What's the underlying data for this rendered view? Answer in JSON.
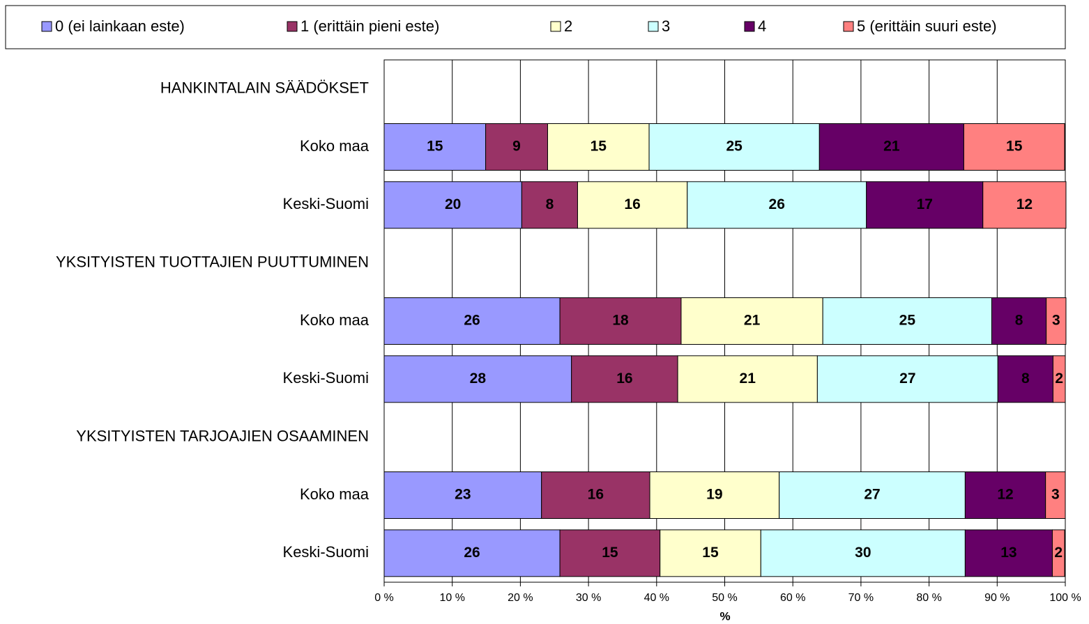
{
  "chart_data": {
    "type": "stacked-bar-horizontal",
    "categories": [
      "HANKINTALAIN SÄÄDÖKSET",
      "Koko maa",
      "Keski-Suomi",
      "YKSITYISTEN TUOTTAJIEN PUUTTUMINEN",
      "Koko maa",
      "Keski-Suomi",
      "YKSITYISTEN TARJOAJIEN OSAAMINEN",
      "Koko maa",
      "Keski-Suomi"
    ],
    "series": [
      {
        "name": "0 (ei lainkaan este)",
        "color": "#9999ff",
        "values": [
          null,
          14.9,
          20.2,
          null,
          25.8,
          27.5,
          null,
          23.1,
          25.8
        ],
        "value_labels": [
          null,
          "15",
          "20",
          null,
          "26",
          "28",
          null,
          "23",
          "26"
        ]
      },
      {
        "name": "1 (erittäin pieni este)",
        "color": "#993366",
        "values": [
          null,
          9.1,
          8.2,
          null,
          17.8,
          15.6,
          null,
          15.9,
          14.7
        ],
        "value_labels": [
          null,
          "9",
          "8",
          null,
          "18",
          "16",
          null,
          "16",
          "15"
        ]
      },
      {
        "name": "2",
        "color": "#ffffcc",
        "values": [
          null,
          14.9,
          16.1,
          null,
          20.8,
          20.5,
          null,
          19.0,
          14.8
        ],
        "value_labels": [
          null,
          "15",
          "16",
          null,
          "21",
          "21",
          null,
          "19",
          "15"
        ]
      },
      {
        "name": "3",
        "color": "#ccffff",
        "values": [
          null,
          25.0,
          26.3,
          null,
          24.8,
          26.5,
          null,
          27.3,
          30.0
        ],
        "value_labels": [
          null,
          "25",
          "26",
          null,
          "25",
          "27",
          null,
          "27",
          "30"
        ]
      },
      {
        "name": "4",
        "color": "#660066",
        "values": [
          null,
          21.2,
          17.1,
          null,
          8.0,
          8.1,
          null,
          11.8,
          12.8
        ],
        "value_labels": [
          null,
          "21",
          "17",
          null,
          "8",
          "8",
          null,
          "12",
          "13"
        ]
      },
      {
        "name": "5 (erittäin suuri este)",
        "color": "#ff8080",
        "values": [
          null,
          14.8,
          12.2,
          null,
          2.9,
          1.8,
          null,
          2.9,
          1.8
        ],
        "value_labels": [
          null,
          "15",
          "12",
          null,
          "3",
          "2",
          null,
          "3",
          "2"
        ]
      }
    ],
    "xlim": [
      0,
      100
    ],
    "xticks": [
      {
        "value": 0,
        "label": "0 %"
      },
      {
        "value": 10,
        "label": "10 %"
      },
      {
        "value": 20,
        "label": "20 %"
      },
      {
        "value": 30,
        "label": "30 %"
      },
      {
        "value": 40,
        "label": "40 %"
      },
      {
        "value": 50,
        "label": "50 %"
      },
      {
        "value": 60,
        "label": "60 %"
      },
      {
        "value": 70,
        "label": "70 %"
      },
      {
        "value": 80,
        "label": "80 %"
      },
      {
        "value": 90,
        "label": "90 %"
      },
      {
        "value": 100,
        "label": "100 %"
      }
    ],
    "x_label": "%",
    "grid": true,
    "legend": "top"
  }
}
